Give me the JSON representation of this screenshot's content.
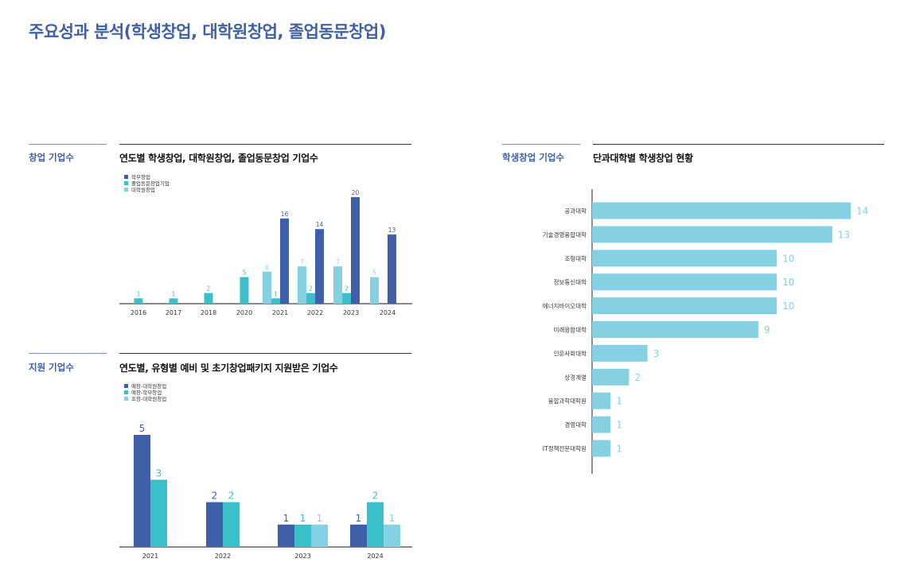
{
  "page": {
    "title": "주요성과 분석(학생창업, 대학원창업, 졸업동문창업)"
  },
  "colors": {
    "dark": "#3f5fa8",
    "teal": "#3bbfca",
    "light": "#86d0e4",
    "axis": "#444444",
    "rule_blue": "#7b8fc4",
    "rule_dark": "#333333"
  },
  "sections": {
    "startup": {
      "label": "창업 기업수",
      "title": "연도별 학생창업, 대학원창업, 졸업동문창업 기업수"
    },
    "support": {
      "label": "지원 기업수",
      "title": "연도별, 유형별 예비 및 초기창업패키지 지원받은 기업수"
    },
    "college": {
      "label": "학생창업 기업수",
      "title": "단과대학별 학생창업 현황"
    }
  },
  "chart_data": [
    {
      "id": "startup",
      "type": "bar",
      "title": "연도별 학생창업, 대학원창업, 졸업동문창업 기업수",
      "categories": [
        "2016",
        "2017",
        "2018",
        "2020",
        "2021",
        "2022",
        "2023",
        "2024"
      ],
      "series": [
        {
          "name": "학부창업",
          "color": "#3f5fa8",
          "values": [
            null,
            null,
            null,
            null,
            16,
            14,
            20,
            13
          ]
        },
        {
          "name": "졸업동문창업기업",
          "color": "#3bbfca",
          "values": [
            1,
            1,
            2,
            5,
            1,
            2,
            2,
            null
          ]
        },
        {
          "name": "대학원창업",
          "color": "#86d0e4",
          "values": [
            null,
            null,
            null,
            null,
            6,
            7,
            7,
            5
          ]
        }
      ],
      "ylim": [
        0,
        20
      ],
      "legend": "top-left"
    },
    {
      "id": "support",
      "type": "bar",
      "title": "연도별, 유형별 예비 및 초기창업패키지 지원받은 기업수",
      "categories": [
        "2021",
        "2022",
        "2023",
        "2024"
      ],
      "series": [
        {
          "name": "예창-대학원창업",
          "color": "#3f5fa8",
          "values": [
            5,
            2,
            1,
            1
          ]
        },
        {
          "name": "예창-학부창업",
          "color": "#3bbfca",
          "values": [
            3,
            2,
            1,
            2
          ]
        },
        {
          "name": "초창-대학원창업",
          "color": "#86d0e4",
          "values": [
            null,
            null,
            1,
            1
          ]
        }
      ],
      "ylim": [
        0,
        5
      ],
      "legend": "top-left"
    },
    {
      "id": "college",
      "type": "bar",
      "orientation": "horizontal",
      "title": "단과대학별 학생창업 현황",
      "categories": [
        "공과대학",
        "기술경영융합대학",
        "조형대학",
        "정보통신대학",
        "에너지바이오대학",
        "미래융합대학",
        "인문사회대학",
        "상경계열",
        "융합과학대학원",
        "경영대학",
        "IT정책전문대학원"
      ],
      "values": [
        14,
        13,
        10,
        10,
        10,
        9,
        3,
        2,
        1,
        1,
        1
      ],
      "color": "#86d0e4",
      "xlim": [
        0,
        14
      ]
    }
  ]
}
